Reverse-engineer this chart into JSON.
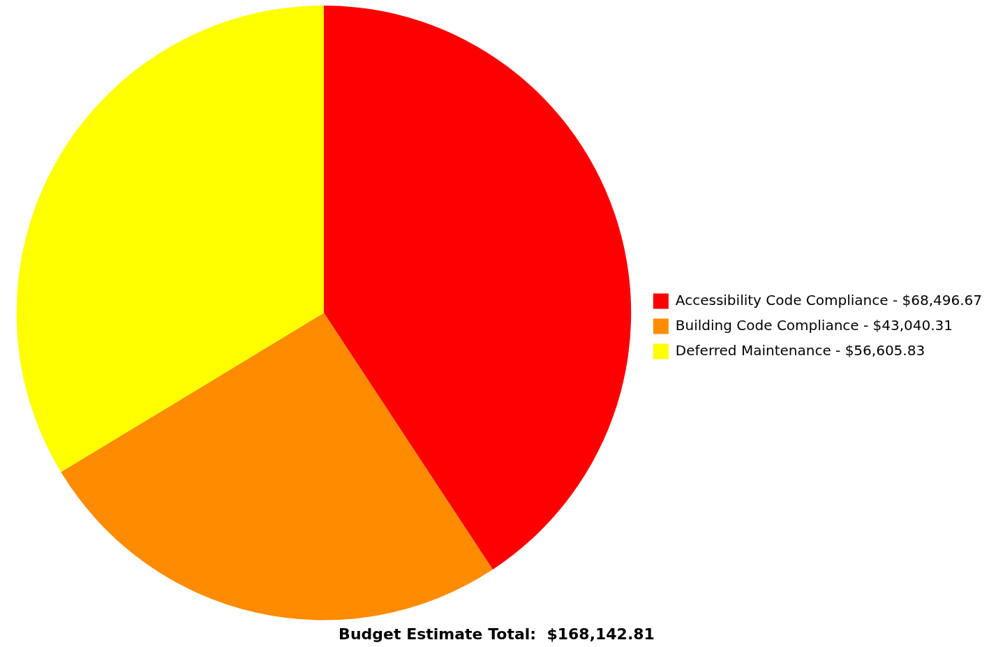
{
  "chart_data": {
    "type": "pie",
    "categories": [
      "Accessibility Code Compliance",
      "Building Code Compliance",
      "Deferred Maintenance"
    ],
    "values": [
      68496.67,
      43040.31,
      56605.83
    ],
    "value_labels": [
      "$68,496.67",
      "$43,040.31",
      "$56,605.83"
    ],
    "colors": [
      "#ff0000",
      "#ff8c00",
      "#ffff00"
    ],
    "legend": "right",
    "annotations": [
      "Budget Estimate Total:  $168,142.81"
    ]
  }
}
